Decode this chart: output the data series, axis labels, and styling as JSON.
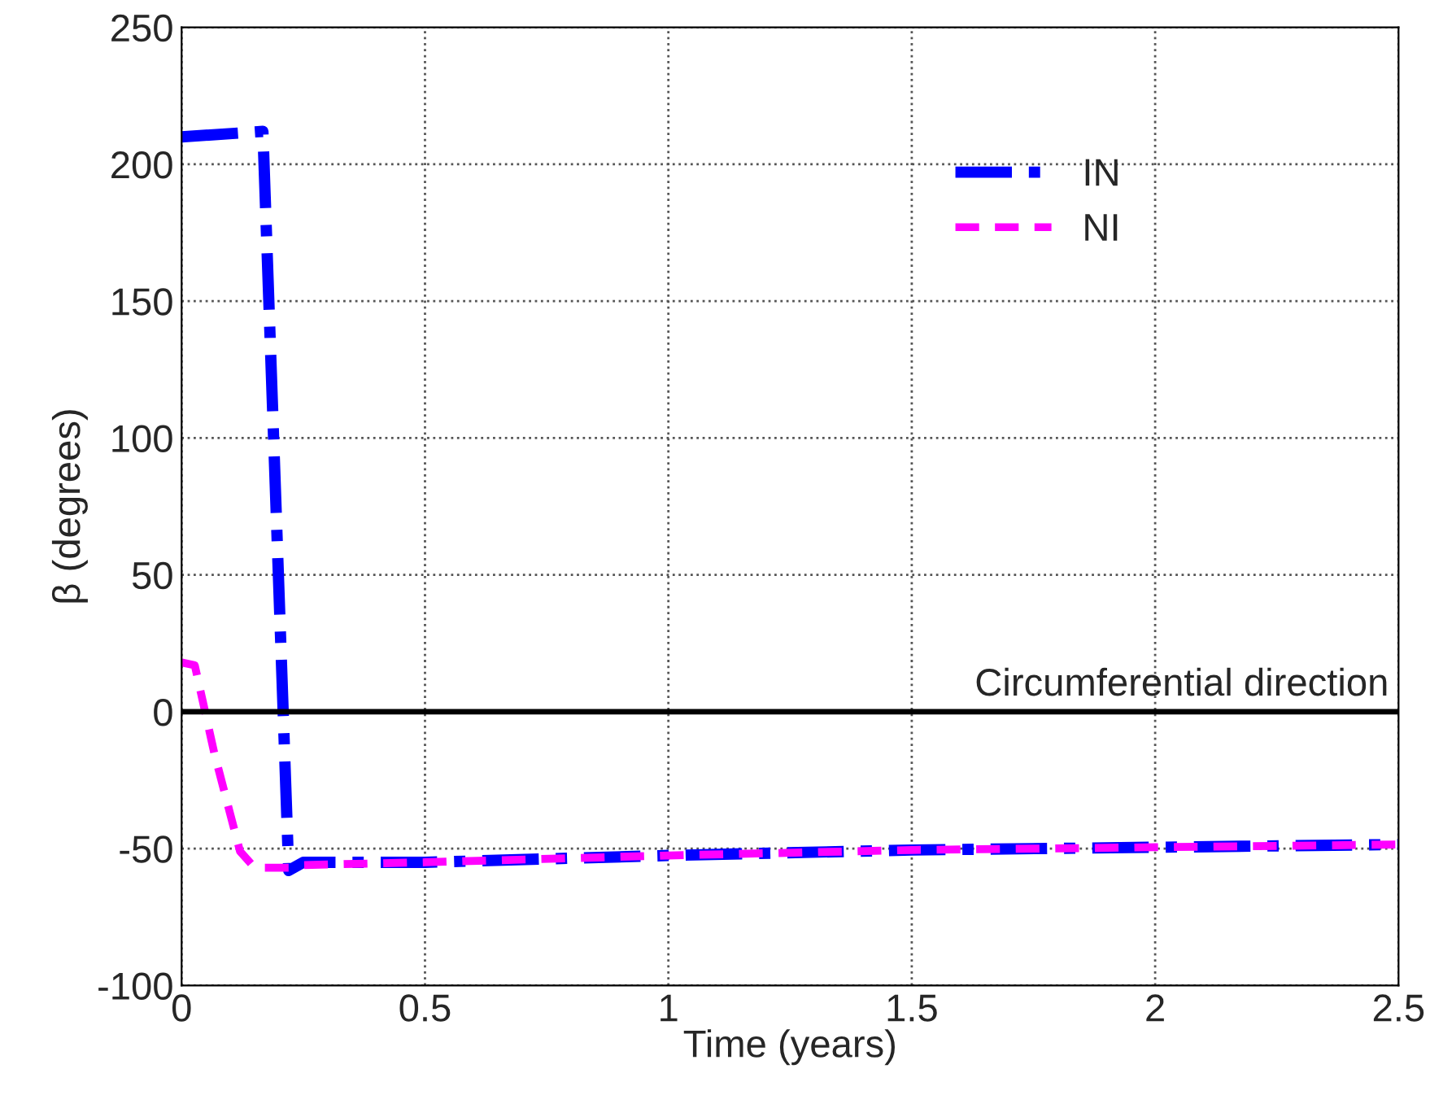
{
  "chart_data": {
    "type": "line",
    "xlabel": "Time (years)",
    "ylabel": "β (degrees)",
    "series": [
      {
        "name": "IN",
        "color": "#0000ff",
        "line_style": "dashdot",
        "x": [
          0,
          0.167,
          0.22,
          0.25,
          0.5,
          1.0,
          1.5,
          2.0,
          2.5
        ],
        "values": [
          210,
          212,
          -58,
          -55,
          -55,
          -52.5,
          -50.5,
          -49.5,
          -48.5
        ]
      },
      {
        "name": "NI",
        "color": "#ff00ff",
        "line_style": "dashed",
        "x": [
          0,
          0.027,
          0.067,
          0.1,
          0.12,
          0.15,
          0.22,
          0.25,
          0.5,
          1.0,
          1.5,
          2.0,
          2.5
        ],
        "values": [
          18,
          17,
          -15,
          -37.5,
          -51,
          -57,
          -57,
          -56,
          -55,
          -52.5,
          -50.5,
          -49.5,
          -48.5
        ]
      }
    ],
    "xlim": [
      0,
      2.5
    ],
    "xticks": [
      0,
      0.5,
      1,
      1.5,
      2,
      2.5
    ],
    "ylim": [
      -100,
      250
    ],
    "yticks": [
      -100,
      -50,
      0,
      50,
      100,
      150,
      200,
      250
    ],
    "ref_lines": [
      {
        "axis": "y",
        "value": 0,
        "label": "Circumferential direction",
        "color": "#000000"
      }
    ],
    "grid": true,
    "legend": "top right",
    "marker": "none"
  }
}
